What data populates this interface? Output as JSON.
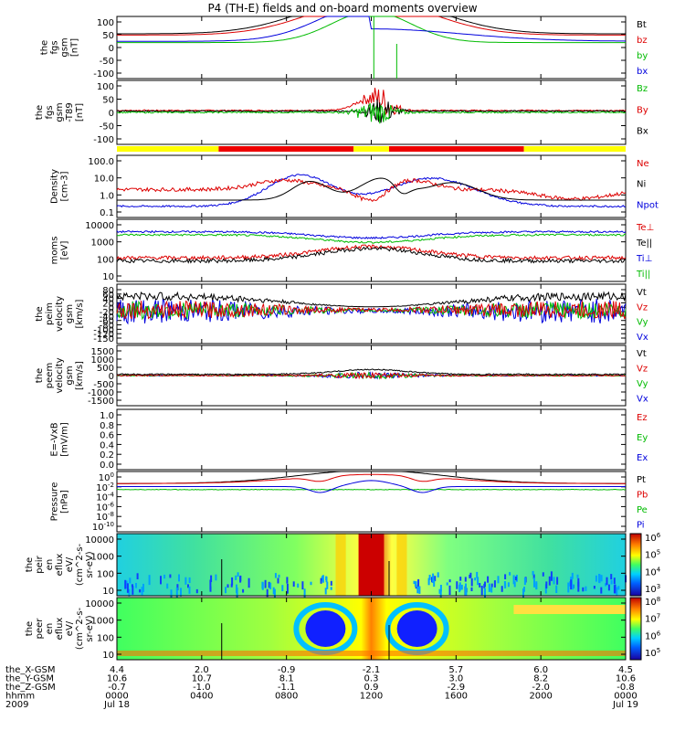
{
  "title": "P4 (TH-E) fields and on-board moments overview",
  "chart_data": [
    {
      "type": "line",
      "ylabel": [
        "the",
        "fgs",
        "gsm",
        "[nT]"
      ],
      "yticks": [
        "100",
        "50",
        "0",
        "-50",
        "-100"
      ],
      "ylim": [
        -100,
        100
      ],
      "legend": [
        {
          "name": "Bt",
          "color": "#000000"
        },
        {
          "name": "bz",
          "color": "#dd0000"
        },
        {
          "name": "by",
          "color": "#00bb00"
        },
        {
          "name": "bx",
          "color": "#0000dd"
        }
      ]
    },
    {
      "type": "line",
      "ylabel": [
        "the",
        "fgs",
        "gsm",
        "-T89",
        "[nT]"
      ],
      "yticks": [
        "100",
        "50",
        "0",
        "-50",
        "-100"
      ],
      "ylim": [
        -125,
        100
      ],
      "legend": [
        {
          "name": "Bz",
          "color": "#00bb00"
        },
        {
          "name": "By",
          "color": "#dd0000"
        },
        {
          "name": "Bx",
          "color": "#000000"
        }
      ]
    },
    {
      "type": "line",
      "ylabel": [
        "Density",
        "[cm-3]"
      ],
      "yticks": [
        "100.0",
        "10.0",
        "1.0",
        "0.1"
      ],
      "scale": "log",
      "legend": [
        {
          "name": "Ne",
          "color": "#dd0000"
        },
        {
          "name": "Ni",
          "color": "#000000"
        },
        {
          "name": "Npot",
          "color": "#0000dd"
        }
      ]
    },
    {
      "type": "line",
      "ylabel": [
        "moms",
        "[eV]"
      ],
      "yticks": [
        "10000",
        "1000",
        "100",
        "10"
      ],
      "scale": "log",
      "legend": [
        {
          "name": "Te⊥",
          "color": "#dd0000"
        },
        {
          "name": "Te||",
          "color": "#000000"
        },
        {
          "name": "Ti⊥",
          "color": "#0000dd"
        },
        {
          "name": "Ti||",
          "color": "#00bb00"
        }
      ]
    },
    {
      "type": "line",
      "ylabel": [
        "the",
        "peim",
        "velocity",
        "gsm",
        "[km/s]"
      ],
      "yticks": [
        "80",
        "60",
        "40",
        "20",
        "0",
        "-20",
        "-40",
        "-60",
        "-80",
        "-100",
        "-120",
        "-150"
      ],
      "ylim": [
        -150,
        80
      ],
      "legend": [
        {
          "name": "Vt",
          "color": "#000000"
        },
        {
          "name": "Vz",
          "color": "#dd0000"
        },
        {
          "name": "Vy",
          "color": "#00bb00"
        },
        {
          "name": "Vx",
          "color": "#0000dd"
        }
      ]
    },
    {
      "type": "line",
      "ylabel": [
        "the",
        "peem",
        "velocity",
        "gsm",
        "[km/s]"
      ],
      "yticks": [
        "1500",
        "1000",
        "500",
        "0",
        "-500",
        "-1000",
        "-1500"
      ],
      "ylim": [
        -1500,
        1500
      ],
      "legend": [
        {
          "name": "Vt",
          "color": "#000000"
        },
        {
          "name": "Vz",
          "color": "#dd0000"
        },
        {
          "name": "Vy",
          "color": "#00bb00"
        },
        {
          "name": "Vx",
          "color": "#0000dd"
        }
      ]
    },
    {
      "type": "line",
      "ylabel": [
        "E=-VxB",
        "[mV/m]"
      ],
      "yticks": [
        "1.0",
        "0.8",
        "0.6",
        "0.4",
        "0.2",
        "0.0"
      ],
      "ylim": [
        0,
        1
      ],
      "legend": [
        {
          "name": "Ez",
          "color": "#dd0000"
        },
        {
          "name": "Ey",
          "color": "#00bb00"
        },
        {
          "name": "Ex",
          "color": "#0000dd"
        }
      ]
    },
    {
      "type": "line",
      "ylabel": [
        "Pressure",
        "[nPa]"
      ],
      "yticks": [
        "10^0",
        "10^-2",
        "10^-4",
        "10^-6",
        "10^-8",
        "10^-10"
      ],
      "scale": "log",
      "legend": [
        {
          "name": "Pt",
          "color": "#000000"
        },
        {
          "name": "Pb",
          "color": "#dd0000"
        },
        {
          "name": "Pe",
          "color": "#00bb00"
        },
        {
          "name": "Pi",
          "color": "#0000dd"
        }
      ]
    },
    {
      "type": "heatmap",
      "ylabel": [
        "the",
        "peir",
        "en",
        "eflux",
        "eV/",
        "(cm^2-s-",
        "sr-eV)"
      ],
      "yticks": [
        "10000",
        "1000",
        "100",
        "10"
      ],
      "colorbar": [
        "10^6",
        "10^5",
        "10^4",
        "10^3"
      ]
    },
    {
      "type": "heatmap",
      "ylabel": [
        "the",
        "peer",
        "en",
        "eflux",
        "eV/",
        "(cm^2-s-",
        "sr-eV)"
      ],
      "yticks": [
        "10000",
        "1000",
        "100",
        "10"
      ],
      "colorbar": [
        "10^8",
        "10^7",
        "10^6",
        "10^5"
      ]
    }
  ],
  "footer": {
    "row_labels": [
      "the_X-GSM",
      "the_Y-GSM",
      "the_Z-GSM",
      "hhmm",
      "2009"
    ],
    "columns": [
      [
        "4.4",
        "2.0",
        "-0.9",
        "-2.1",
        "5.7",
        "6.0",
        "4.5"
      ],
      [
        "10.6",
        "10.7",
        "8.1",
        "0.3",
        "3.0",
        "8.2",
        "10.6"
      ],
      [
        "-0.7",
        "-1.0",
        "-1.1",
        "0.9",
        "-2.9",
        "-2.0",
        "-0.8"
      ],
      [
        "0000",
        "0400",
        "0800",
        "1200",
        "1600",
        "2000",
        "0000"
      ]
    ],
    "date_start": "Jul 18",
    "date_end": "Jul 19"
  },
  "colors": {
    "black": "#000000",
    "red": "#dd0000",
    "green": "#00bb00",
    "blue": "#0000dd",
    "status_yellow": "#ffff00",
    "status_red": "#ee0000"
  }
}
